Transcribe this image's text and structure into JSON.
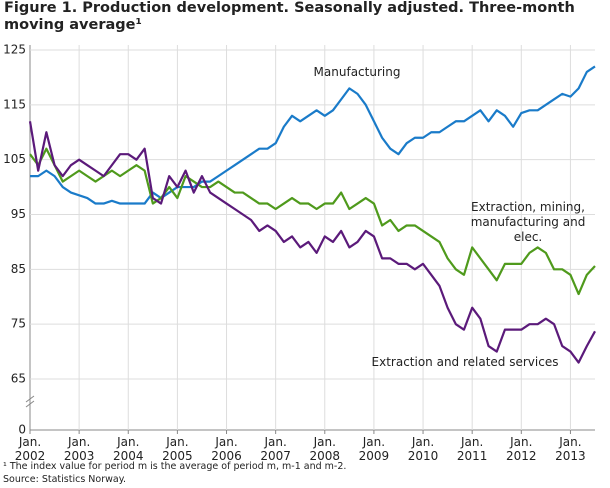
{
  "chart_data": {
    "type": "line",
    "title": "Figure 1. Production development. Seasonally adjusted. Three-month moving average¹",
    "footnote": "¹ The index value for period m is the average of period m, m-1 and m-2.",
    "source": "Source: Statistics Norway.",
    "x": [
      "2002-01",
      "2002-03",
      "2002-05",
      "2002-07",
      "2002-09",
      "2002-11",
      "2003-01",
      "2003-03",
      "2003-05",
      "2003-07",
      "2003-09",
      "2003-11",
      "2004-01",
      "2004-03",
      "2004-05",
      "2004-07",
      "2004-09",
      "2004-11",
      "2005-01",
      "2005-03",
      "2005-05",
      "2005-07",
      "2005-09",
      "2005-11",
      "2006-01",
      "2006-03",
      "2006-05",
      "2006-07",
      "2006-09",
      "2006-11",
      "2007-01",
      "2007-03",
      "2007-05",
      "2007-07",
      "2007-09",
      "2007-11",
      "2008-01",
      "2008-03",
      "2008-05",
      "2008-07",
      "2008-09",
      "2008-11",
      "2009-01",
      "2009-03",
      "2009-05",
      "2009-07",
      "2009-09",
      "2009-11",
      "2010-01",
      "2010-03",
      "2010-05",
      "2010-07",
      "2010-09",
      "2010-11",
      "2011-01",
      "2011-03",
      "2011-05",
      "2011-07",
      "2011-09",
      "2011-11",
      "2012-01",
      "2012-03",
      "2012-05",
      "2012-07",
      "2012-09",
      "2012-11",
      "2013-01",
      "2013-03",
      "2013-05",
      "2013-07"
    ],
    "series": [
      {
        "name": "Manufacturing",
        "color": "#1a7bc9",
        "values": [
          102,
          102,
          103,
          102,
          100,
          99,
          98.5,
          98,
          97,
          97,
          97.5,
          97,
          97,
          97,
          97,
          99,
          98,
          99,
          100,
          100,
          100,
          101,
          101,
          102,
          103,
          104,
          105,
          106,
          107,
          107,
          108,
          111,
          113,
          112,
          113,
          114,
          113,
          114,
          116,
          118,
          117,
          115,
          112,
          109,
          107,
          106,
          108,
          109,
          109,
          110,
          110,
          111,
          112,
          112,
          113,
          114,
          112,
          114,
          113,
          111,
          113.5,
          114,
          114,
          115,
          116,
          117,
          116.5,
          118,
          121,
          122
        ]
      },
      {
        "name": "Extraction, mining, manufacturing and elec.",
        "color": "#4f9a1c",
        "values": [
          106,
          104,
          107,
          104,
          101,
          102,
          103,
          102,
          101,
          102,
          103,
          102,
          103,
          104,
          103,
          97,
          98,
          100,
          98,
          102,
          101,
          100,
          100,
          101,
          100,
          99,
          99,
          98,
          97,
          97,
          96,
          97,
          98,
          97,
          97,
          96,
          97,
          97,
          99,
          96,
          97,
          98,
          97,
          93,
          94,
          92,
          93,
          93,
          92,
          91,
          90,
          87,
          85,
          84,
          89,
          87,
          85,
          83,
          86,
          86,
          86,
          88,
          89,
          88,
          85,
          85,
          84,
          80.5,
          84,
          85.6
        ]
      },
      {
        "name": "Extraction and related services",
        "color": "#5b1a7a",
        "values": [
          112,
          103,
          110,
          104,
          102,
          104,
          105,
          104,
          103,
          102,
          104,
          106,
          106,
          105,
          107,
          98,
          97,
          102,
          100,
          103,
          99,
          102,
          99,
          98,
          97,
          96,
          95,
          94,
          92,
          93,
          92,
          90,
          91,
          89,
          90,
          88,
          91,
          90,
          92,
          89,
          90,
          92,
          91,
          87,
          87,
          86,
          86,
          85,
          86,
          84,
          82,
          78,
          75,
          74,
          78,
          76,
          71,
          70,
          74,
          74,
          74,
          75,
          75,
          76,
          75,
          71,
          70,
          68,
          71,
          73.7
        ]
      }
    ],
    "xlim": [
      "2002-01",
      "2013-07"
    ],
    "xticks": [
      {
        "value": "2002-01",
        "label": "Jan. 2002"
      },
      {
        "value": "2003-01",
        "label": "Jan. 2003"
      },
      {
        "value": "2004-01",
        "label": "Jan. 2004"
      },
      {
        "value": "2005-01",
        "label": "Jan. 2005"
      },
      {
        "value": "2006-01",
        "label": "Jan. 2006"
      },
      {
        "value": "2007-01",
        "label": "Jan. 2007"
      },
      {
        "value": "2008-01",
        "label": "Jan. 2008"
      },
      {
        "value": "2009-01",
        "label": "Jan. 2009"
      },
      {
        "value": "2010-01",
        "label": "Jan. 2010"
      },
      {
        "value": "2011-01",
        "label": "Jan. 2011"
      },
      {
        "value": "2012-01",
        "label": "Jan. 2012"
      },
      {
        "value": "2013-01",
        "label": "Jan. 2013"
      }
    ],
    "ylim": [
      0,
      125
    ],
    "axis_break": [
      0,
      65
    ],
    "yticks": [
      0,
      65,
      75,
      85,
      95,
      105,
      115,
      125
    ],
    "grid": true
  }
}
